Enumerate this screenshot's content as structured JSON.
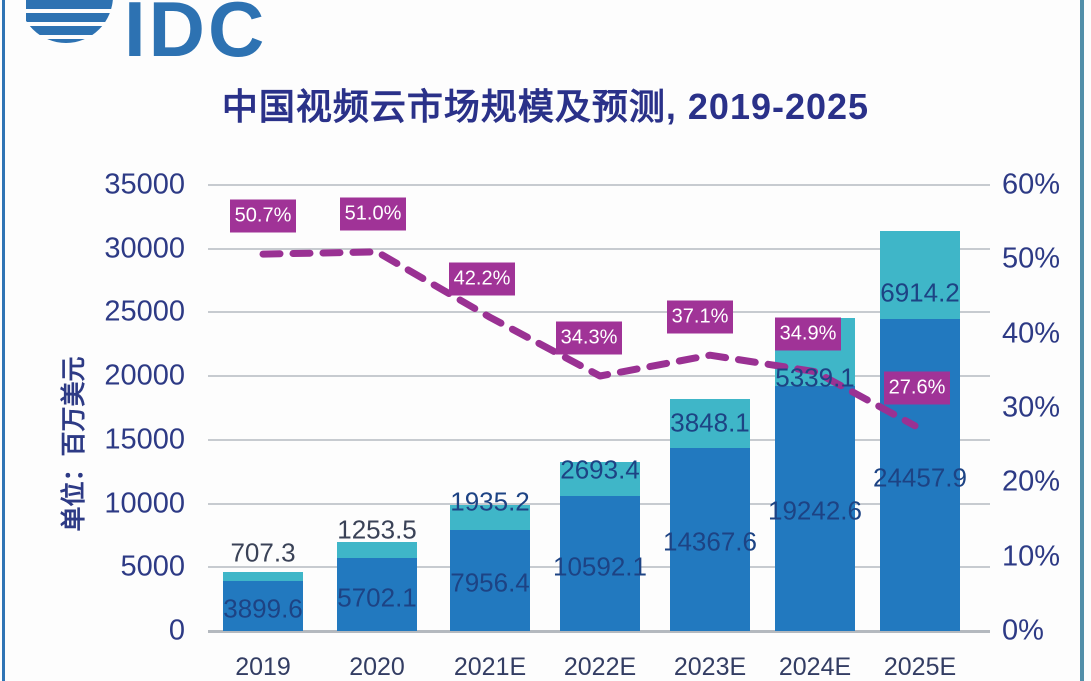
{
  "logo": {
    "text": "IDC"
  },
  "chart_data": {
    "type": "bar",
    "subtype": "stacked-bars-with-growth-line",
    "title": "中国视频云市场规模及预测, 2019-2025",
    "categories": [
      "2019",
      "2020",
      "2021E",
      "2022E",
      "2023E",
      "2024E",
      "2025E"
    ],
    "series": [
      {
        "name": "segment_bottom",
        "values": [
          3899.6,
          5702.1,
          7956.4,
          10592.1,
          14367.6,
          19242.6,
          24457.9
        ]
      },
      {
        "name": "segment_top",
        "values": [
          707.3,
          1253.5,
          1935.2,
          2693.4,
          3848.1,
          5339.1,
          6914.2
        ]
      }
    ],
    "line_series": {
      "name": "growth_rate",
      "values_pct": [
        50.7,
        51.0,
        42.2,
        34.3,
        37.1,
        34.9,
        27.6
      ],
      "labels": [
        "50.7%",
        "51.0%",
        "42.2%",
        "34.3%",
        "37.1%",
        "34.9%",
        "27.6%"
      ]
    },
    "left_axis": {
      "label": "单位：百万美元",
      "ticks": [
        35000,
        30000,
        25000,
        20000,
        15000,
        10000,
        5000,
        0
      ],
      "range": [
        0,
        35000
      ]
    },
    "right_axis": {
      "ticks": [
        "60%",
        "50%",
        "40%",
        "30%",
        "20%",
        "10%",
        "0%"
      ],
      "tick_values": [
        60,
        50,
        40,
        30,
        20,
        10,
        0
      ],
      "range_pct": [
        0,
        60
      ]
    },
    "grid": true,
    "legend": false
  },
  "colors": {
    "bar_bottom": "#2279bf",
    "bar_top": "#3fb6c8",
    "growth_magenta": "#a03397",
    "growth_line": "#9a3193",
    "title_navy": "#2a3189",
    "axis_text": "#2d3a85",
    "xtick_text": "#333d63",
    "value_inside": "#1d4384",
    "value_above": "#3a4257",
    "gridline": "#c7cbd0",
    "axis_line": "#b4b9bf",
    "logo_blue": "#2d72b2",
    "border_left": "#2f74b5",
    "border_right": "#518fa9"
  }
}
